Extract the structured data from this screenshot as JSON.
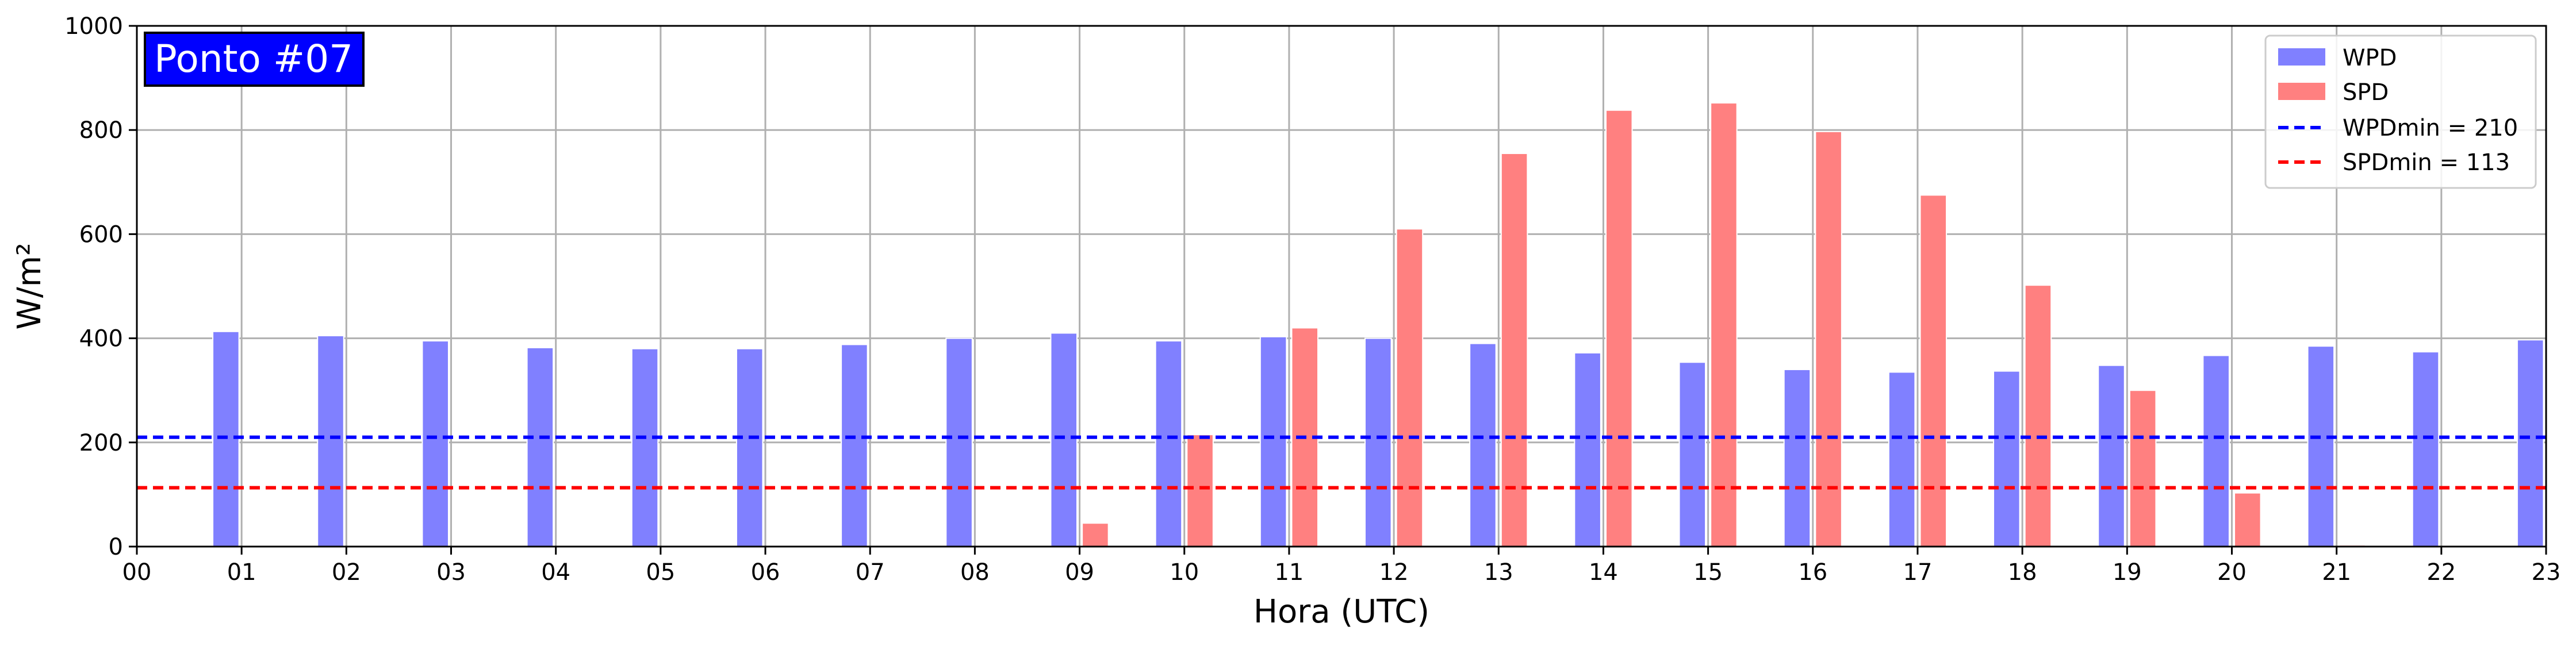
{
  "chart_data": {
    "type": "bar",
    "badge": "Ponto #07",
    "xlabel": "Hora (UTC)",
    "ylabel": "W/m²",
    "xlim": [
      0,
      23
    ],
    "ylim": [
      0,
      1000
    ],
    "yticks": [
      0,
      200,
      400,
      600,
      800,
      1000
    ],
    "xticks": [
      "00",
      "01",
      "02",
      "03",
      "04",
      "05",
      "06",
      "07",
      "08",
      "09",
      "10",
      "11",
      "12",
      "13",
      "14",
      "15",
      "16",
      "17",
      "18",
      "19",
      "20",
      "21",
      "22",
      "23"
    ],
    "grid": true,
    "legend_position": "top-right",
    "series": [
      {
        "name": "WPD",
        "color": "#8080ff",
        "x": [
          1,
          2,
          3,
          4,
          5,
          6,
          7,
          8,
          9,
          10,
          11,
          12,
          13,
          14,
          15,
          16,
          17,
          18,
          19,
          20,
          21,
          22,
          23
        ],
        "values": [
          413,
          405,
          395,
          382,
          380,
          380,
          388,
          400,
          410,
          395,
          403,
          400,
          390,
          372,
          354,
          340,
          335,
          337,
          348,
          367,
          385,
          374,
          397
        ]
      },
      {
        "name": "SPD",
        "color": "#ff8080",
        "x": [
          1,
          2,
          3,
          4,
          5,
          6,
          7,
          8,
          9,
          10,
          11,
          12,
          13,
          14,
          15,
          16,
          17,
          18,
          19,
          20,
          21,
          22,
          23
        ],
        "values": [
          0,
          0,
          0,
          0,
          0,
          0,
          0,
          0,
          45,
          215,
          420,
          610,
          755,
          838,
          852,
          797,
          675,
          502,
          300,
          103,
          3,
          0,
          0
        ]
      }
    ],
    "reference_lines": [
      {
        "name": "WPDmin = 210",
        "value": 210,
        "color": "#0000ff",
        "style": "dashed"
      },
      {
        "name": "SPDmin = 113",
        "value": 113,
        "color": "#ff0000",
        "style": "dashed"
      }
    ],
    "colors": {
      "badge_bg": "#0000ff",
      "badge_text": "#ffffff"
    }
  }
}
